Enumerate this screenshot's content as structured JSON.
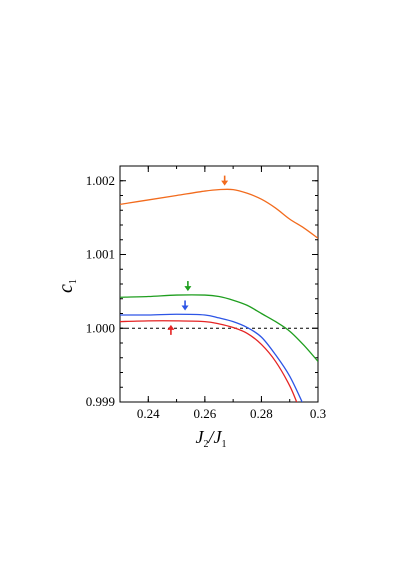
{
  "chart_data": {
    "type": "line",
    "xlabel": {
      "main": "J",
      "sub1": "2",
      "slash": "/",
      "main2": "J",
      "sub2": "1"
    },
    "ylabel": {
      "main": "c",
      "sub": "1"
    },
    "xlim": [
      0.23,
      0.3
    ],
    "ylim": [
      0.999,
      1.0022
    ],
    "xticks": [
      0.24,
      0.26,
      0.28,
      0.3
    ],
    "xtick_labels": [
      "0.24",
      "0.26",
      "0.28",
      "0.3"
    ],
    "yticks": [
      0.999,
      1.0,
      1.001,
      1.002
    ],
    "ytick_labels": [
      "0.999",
      "1.000",
      "1.001",
      "1.002"
    ],
    "reference_line": {
      "y": 1.0,
      "style": "dashed",
      "color": "#000000"
    },
    "series": [
      {
        "color": "#f26b1d",
        "points": [
          [
            0.23,
            1.00168
          ],
          [
            0.24,
            1.00174
          ],
          [
            0.25,
            1.0018
          ],
          [
            0.26,
            1.00186
          ],
          [
            0.265,
            1.00188
          ],
          [
            0.27,
            1.00188
          ],
          [
            0.275,
            1.00183
          ],
          [
            0.28,
            1.00175
          ],
          [
            0.285,
            1.00163
          ],
          [
            0.29,
            1.00148
          ],
          [
            0.295,
            1.00136
          ],
          [
            0.3,
            1.00122
          ]
        ],
        "arrow": {
          "x": 0.267,
          "direction": "down"
        }
      },
      {
        "color": "#1f9e1f",
        "points": [
          [
            0.23,
            1.00042
          ],
          [
            0.24,
            1.00043
          ],
          [
            0.25,
            1.00045
          ],
          [
            0.26,
            1.00045
          ],
          [
            0.265,
            1.00043
          ],
          [
            0.27,
            1.00038
          ],
          [
            0.275,
            1.00031
          ],
          [
            0.28,
            1.0002
          ],
          [
            0.285,
            1.00009
          ],
          [
            0.29,
            0.99996
          ],
          [
            0.295,
            0.99977
          ],
          [
            0.3,
            0.99955
          ]
        ],
        "arrow": {
          "x": 0.254,
          "direction": "down"
        }
      },
      {
        "color": "#2d55e6",
        "points": [
          [
            0.23,
            1.00018
          ],
          [
            0.24,
            1.00018
          ],
          [
            0.25,
            1.00019
          ],
          [
            0.26,
            1.00018
          ],
          [
            0.265,
            1.00014
          ],
          [
            0.27,
            1.00009
          ],
          [
            0.275,
            1.00001
          ],
          [
            0.28,
            0.99988
          ],
          [
            0.285,
            0.99964
          ],
          [
            0.29,
            0.99935
          ],
          [
            0.295,
            0.99895
          ],
          [
            0.298,
            0.9987
          ]
        ],
        "arrow": {
          "x": 0.253,
          "direction": "down"
        }
      },
      {
        "color": "#e52424",
        "points": [
          [
            0.23,
            1.00009
          ],
          [
            0.24,
            1.0001
          ],
          [
            0.25,
            1.0001
          ],
          [
            0.26,
            1.00009
          ],
          [
            0.265,
            1.00006
          ],
          [
            0.27,
            1.00001
          ],
          [
            0.275,
            0.99993
          ],
          [
            0.28,
            0.99978
          ],
          [
            0.285,
            0.99955
          ],
          [
            0.29,
            0.99922
          ],
          [
            0.293,
            0.99895
          ],
          [
            0.297,
            0.9986
          ]
        ],
        "arrow": {
          "x": 0.248,
          "direction": "up"
        }
      }
    ]
  }
}
